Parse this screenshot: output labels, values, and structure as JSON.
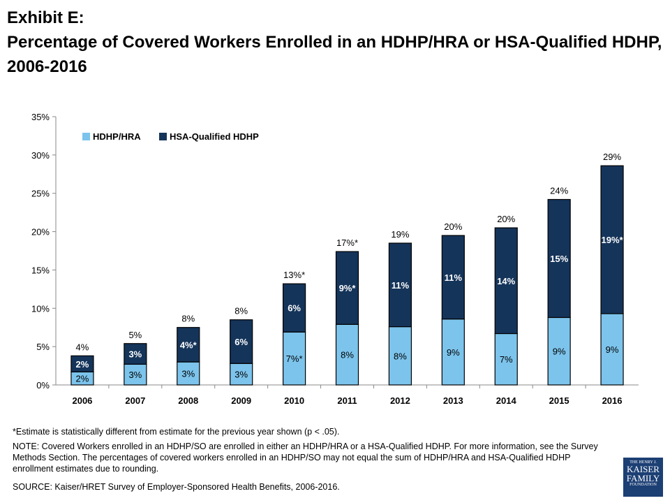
{
  "title_line1": "Exhibit E:",
  "title_line2": "Percentage of Covered Workers Enrolled in an HDHP/HRA or HSA-Qualified HDHP, 2006-2016",
  "chart_data": {
    "type": "bar",
    "stacked": true,
    "categories": [
      "2006",
      "2007",
      "2008",
      "2009",
      "2010",
      "2011",
      "2012",
      "2013",
      "2014",
      "2015",
      "2016"
    ],
    "series": [
      {
        "name": "HDHP/HRA",
        "color": "#7cc4ec",
        "values": [
          1.7,
          2.7,
          3.0,
          2.8,
          6.9,
          7.9,
          7.6,
          8.6,
          6.7,
          8.8,
          9.3
        ],
        "labels": [
          "2%",
          "3%",
          "3%",
          "3%",
          "7%*",
          "8%",
          "8%",
          "9%",
          "7%",
          "9%",
          "9%"
        ]
      },
      {
        "name": "HSA-Qualified HDHP",
        "color": "#15345a",
        "values": [
          2.1,
          2.7,
          4.5,
          5.7,
          6.3,
          9.5,
          10.9,
          10.9,
          13.8,
          15.4,
          19.3
        ],
        "labels": [
          "2%",
          "3%",
          "4%*",
          "6%",
          "6%",
          "9%*",
          "11%",
          "11%",
          "14%",
          "15%",
          "19%*"
        ]
      }
    ],
    "total_labels": [
      "4%",
      "5%",
      "8%",
      "8%",
      "13%*",
      "17%*",
      "19%",
      "20%",
      "20%",
      "24%",
      "29%"
    ],
    "yticks": [
      "0%",
      "5%",
      "10%",
      "15%",
      "20%",
      "25%",
      "30%",
      "35%"
    ],
    "ylim": [
      0,
      35
    ],
    "grid": false,
    "legend": "top-left"
  },
  "footnote": "*Estimate is statistically different from estimate for the previous year shown (p < .05).",
  "note": "NOTE: Covered Workers enrolled in an HDHP/SO are enrolled in either an HDHP/HRA or a HSA-Qualified HDHP. For more information, see the Survey Methods Section. The percentages of covered workers enrolled in an HDHP/SO may not equal the sum of HDHP/HRA and HSA-Qualified HDHP enrollment estimates due to rounding.",
  "source": "SOURCE:  Kaiser/HRET Survey of Employer-Sponsored Health Benefits, 2006-2016.",
  "logo": {
    "line1": "THE HENRY J.",
    "line2": "KAISER",
    "line3": "FAMILY",
    "line4": "FOUNDATION"
  }
}
